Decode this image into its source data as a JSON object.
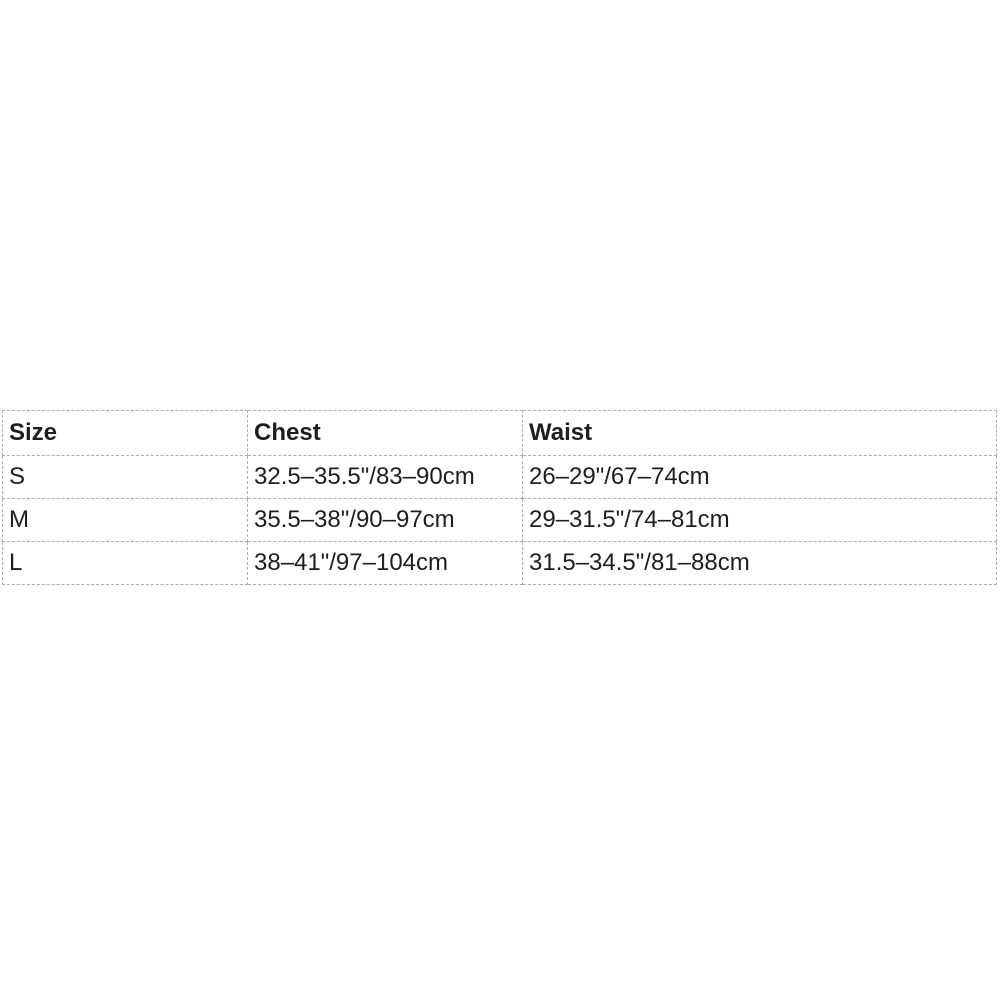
{
  "chart_data": {
    "type": "table",
    "columns": [
      "Size",
      "Chest",
      "Waist"
    ],
    "rows": [
      [
        "S",
        "32.5–35.5\"/83–90cm",
        "26–29\"/67–74cm"
      ],
      [
        "M",
        "35.5–38\"/90–97cm",
        "29–31.5\"/74–81cm"
      ],
      [
        "L",
        "38–41\"/97–104cm",
        "31.5–34.5\"/81–88cm"
      ]
    ],
    "layout": {
      "border_style": "dashed",
      "border_color": "#adadad",
      "text_color": "#1e1e22",
      "background": "#ffffff"
    }
  }
}
